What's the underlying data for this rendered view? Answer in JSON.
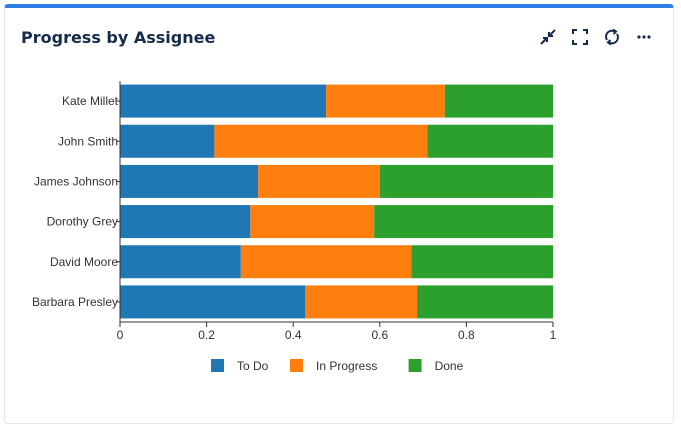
{
  "widget": {
    "title": "Progress by Assignee",
    "toolbar": [
      {
        "icon": "collapse-icon"
      },
      {
        "icon": "fullscreen-icon"
      },
      {
        "icon": "refresh-icon"
      },
      {
        "icon": "more-options-icon"
      }
    ]
  },
  "chart_data": {
    "type": "bar",
    "orientation": "horizontal",
    "stacked": true,
    "categories": [
      "Kate Millet",
      "John Smith",
      "James Johnson",
      "Dorothy Grey",
      "David Moore",
      "Barbara Presley"
    ],
    "series": [
      {
        "name": "To Do",
        "color": "#1f77b4",
        "values": [
          0.476,
          0.218,
          0.319,
          0.301,
          0.279,
          0.428
        ]
      },
      {
        "name": "In Progress",
        "color": "#ff7f0e",
        "values": [
          0.274,
          0.492,
          0.281,
          0.286,
          0.394,
          0.258
        ]
      },
      {
        "name": "Done",
        "color": "#2ca02c",
        "values": [
          0.25,
          0.29,
          0.4,
          0.413,
          0.327,
          0.314
        ]
      }
    ],
    "xlim": [
      0,
      1
    ],
    "xticks": [
      "0",
      "0.2",
      "0.4",
      "0.6",
      "0.8",
      "1"
    ],
    "legend_position": "bottom-center"
  }
}
